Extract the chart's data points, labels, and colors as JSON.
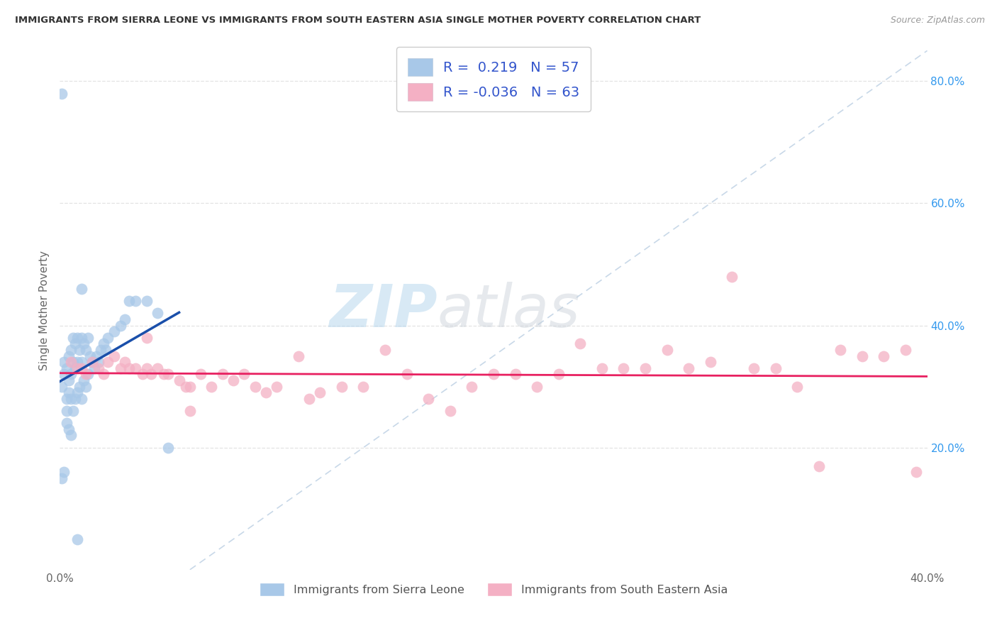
{
  "title": "IMMIGRANTS FROM SIERRA LEONE VS IMMIGRANTS FROM SOUTH EASTERN ASIA SINGLE MOTHER POVERTY CORRELATION CHART",
  "source": "Source: ZipAtlas.com",
  "ylabel": "Single Mother Poverty",
  "legend_label1": "Immigrants from Sierra Leone",
  "legend_label2": "Immigrants from South Eastern Asia",
  "R1": 0.219,
  "N1": 57,
  "R2": -0.036,
  "N2": 63,
  "color1": "#a8c8e8",
  "color2": "#f4b0c4",
  "line_color1": "#1a4faa",
  "line_color2": "#e82060",
  "diag_color": "#c8d8e8",
  "xlim": [
    0.0,
    0.4
  ],
  "ylim": [
    0.0,
    0.85
  ],
  "background_color": "#ffffff",
  "sl_x": [
    0.001,
    0.001,
    0.001,
    0.002,
    0.002,
    0.002,
    0.003,
    0.003,
    0.003,
    0.003,
    0.004,
    0.004,
    0.004,
    0.004,
    0.005,
    0.005,
    0.005,
    0.005,
    0.006,
    0.006,
    0.006,
    0.007,
    0.007,
    0.007,
    0.008,
    0.008,
    0.008,
    0.009,
    0.009,
    0.01,
    0.01,
    0.01,
    0.011,
    0.011,
    0.012,
    0.012,
    0.013,
    0.013,
    0.014,
    0.015,
    0.016,
    0.017,
    0.018,
    0.019,
    0.02,
    0.021,
    0.022,
    0.025,
    0.028,
    0.03,
    0.032,
    0.035,
    0.04,
    0.045,
    0.05,
    0.01,
    0.008
  ],
  "sl_y": [
    0.78,
    0.3,
    0.15,
    0.34,
    0.32,
    0.16,
    0.33,
    0.28,
    0.26,
    0.24,
    0.35,
    0.31,
    0.29,
    0.23,
    0.36,
    0.32,
    0.28,
    0.22,
    0.38,
    0.34,
    0.26,
    0.37,
    0.33,
    0.28,
    0.38,
    0.34,
    0.29,
    0.36,
    0.3,
    0.38,
    0.34,
    0.28,
    0.37,
    0.31,
    0.36,
    0.3,
    0.38,
    0.32,
    0.35,
    0.34,
    0.33,
    0.35,
    0.34,
    0.36,
    0.37,
    0.36,
    0.38,
    0.39,
    0.4,
    0.41,
    0.44,
    0.44,
    0.44,
    0.42,
    0.2,
    0.46,
    0.05
  ],
  "sea_x": [
    0.005,
    0.008,
    0.01,
    0.012,
    0.015,
    0.018,
    0.02,
    0.022,
    0.025,
    0.028,
    0.03,
    0.032,
    0.035,
    0.038,
    0.04,
    0.042,
    0.045,
    0.048,
    0.05,
    0.055,
    0.058,
    0.06,
    0.065,
    0.07,
    0.075,
    0.08,
    0.085,
    0.09,
    0.095,
    0.1,
    0.11,
    0.115,
    0.12,
    0.13,
    0.14,
    0.15,
    0.16,
    0.17,
    0.18,
    0.19,
    0.2,
    0.21,
    0.22,
    0.23,
    0.24,
    0.25,
    0.26,
    0.27,
    0.28,
    0.29,
    0.3,
    0.31,
    0.32,
    0.33,
    0.34,
    0.35,
    0.36,
    0.37,
    0.38,
    0.39,
    0.395,
    0.04,
    0.06
  ],
  "sea_y": [
    0.34,
    0.33,
    0.33,
    0.32,
    0.34,
    0.33,
    0.32,
    0.34,
    0.35,
    0.33,
    0.34,
    0.33,
    0.33,
    0.32,
    0.33,
    0.32,
    0.33,
    0.32,
    0.32,
    0.31,
    0.3,
    0.3,
    0.32,
    0.3,
    0.32,
    0.31,
    0.32,
    0.3,
    0.29,
    0.3,
    0.35,
    0.28,
    0.29,
    0.3,
    0.3,
    0.36,
    0.32,
    0.28,
    0.26,
    0.3,
    0.32,
    0.32,
    0.3,
    0.32,
    0.37,
    0.33,
    0.33,
    0.33,
    0.36,
    0.33,
    0.34,
    0.48,
    0.33,
    0.33,
    0.3,
    0.17,
    0.36,
    0.35,
    0.35,
    0.36,
    0.16,
    0.38,
    0.26
  ]
}
